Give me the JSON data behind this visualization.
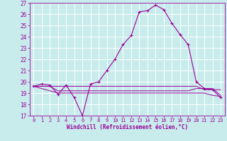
{
  "xlabel": "Windchill (Refroidissement éolien,°C)",
  "xlim": [
    -0.5,
    23.5
  ],
  "ylim": [
    17,
    27
  ],
  "yticks": [
    17,
    18,
    19,
    20,
    21,
    22,
    23,
    24,
    25,
    26,
    27
  ],
  "xticks": [
    0,
    1,
    2,
    3,
    4,
    5,
    6,
    7,
    8,
    9,
    10,
    11,
    12,
    13,
    14,
    15,
    16,
    17,
    18,
    19,
    20,
    21,
    22,
    23
  ],
  "bg_color": "#c8ecec",
  "line_color": "#990099",
  "grid_color": "#b0d8d8",
  "series": [
    {
      "x": [
        0,
        1,
        2,
        3,
        4,
        5,
        6,
        7,
        8,
        9,
        10,
        11,
        12,
        13,
        14,
        15,
        16,
        17,
        18,
        19,
        20,
        21,
        22,
        23
      ],
      "y": [
        19.6,
        19.8,
        19.7,
        18.9,
        19.7,
        18.6,
        17.0,
        19.8,
        20.0,
        21.0,
        22.0,
        23.3,
        24.1,
        26.2,
        26.3,
        26.8,
        26.4,
        25.2,
        24.2,
        23.3,
        20.0,
        19.4,
        19.3,
        18.6
      ],
      "marker": "+"
    },
    {
      "x": [
        0,
        1,
        2,
        3,
        4,
        5,
        6,
        7,
        8,
        9,
        10,
        11,
        12,
        13,
        14,
        15,
        16,
        17,
        18,
        19,
        20,
        21,
        22,
        23
      ],
      "y": [
        19.6,
        19.6,
        19.6,
        19.6,
        19.6,
        19.6,
        19.6,
        19.6,
        19.6,
        19.6,
        19.6,
        19.6,
        19.6,
        19.6,
        19.6,
        19.6,
        19.6,
        19.6,
        19.6,
        19.6,
        19.6,
        19.3,
        19.3,
        19.3
      ]
    },
    {
      "x": [
        0,
        1,
        2,
        3,
        4,
        5,
        6,
        7,
        8,
        9,
        10,
        11,
        12,
        13,
        14,
        15,
        16,
        17,
        18,
        19,
        20,
        21,
        22,
        23
      ],
      "y": [
        19.6,
        19.6,
        19.6,
        19.2,
        19.2,
        19.2,
        19.2,
        19.2,
        19.2,
        19.2,
        19.2,
        19.2,
        19.2,
        19.2,
        19.2,
        19.2,
        19.2,
        19.2,
        19.2,
        19.2,
        19.4,
        19.4,
        19.4,
        18.8
      ]
    },
    {
      "x": [
        0,
        3,
        4,
        5,
        6,
        7,
        8,
        9,
        10,
        11,
        12,
        13,
        14,
        15,
        16,
        17,
        18,
        19,
        20,
        21,
        22,
        23
      ],
      "y": [
        19.6,
        19.0,
        19.0,
        19.0,
        19.0,
        19.0,
        19.0,
        19.0,
        19.0,
        19.0,
        19.0,
        19.0,
        19.0,
        19.0,
        19.0,
        19.0,
        19.0,
        19.0,
        19.0,
        19.0,
        18.8,
        18.7
      ]
    }
  ]
}
